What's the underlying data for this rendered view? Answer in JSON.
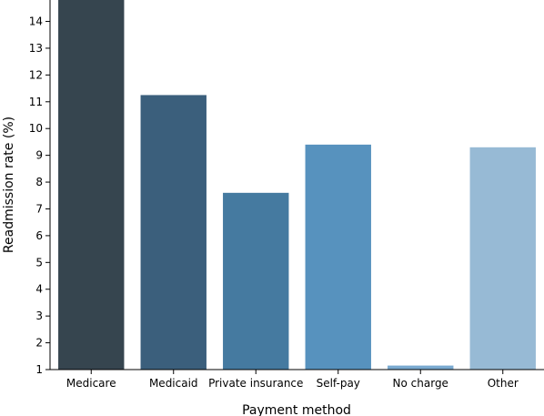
{
  "chart_data": {
    "type": "bar",
    "title": "",
    "xlabel": "Payment method",
    "ylabel": "Readmission rate (%)",
    "ylim": [
      1,
      14.8
    ],
    "yticks": [
      1,
      2,
      3,
      4,
      5,
      6,
      7,
      8,
      9,
      10,
      11,
      12,
      13,
      14
    ],
    "categories": [
      "Medicare",
      "Medicaid",
      "Private insurance",
      "Self-pay",
      "No charge",
      "Other"
    ],
    "values": [
      14.8,
      11.25,
      7.6,
      9.4,
      1.15,
      9.3
    ],
    "colors": [
      "#36454f",
      "#3b5f7c",
      "#457aa0",
      "#5792be",
      "#7aaad0",
      "#97bad5"
    ],
    "grid": false,
    "legend": false
  }
}
